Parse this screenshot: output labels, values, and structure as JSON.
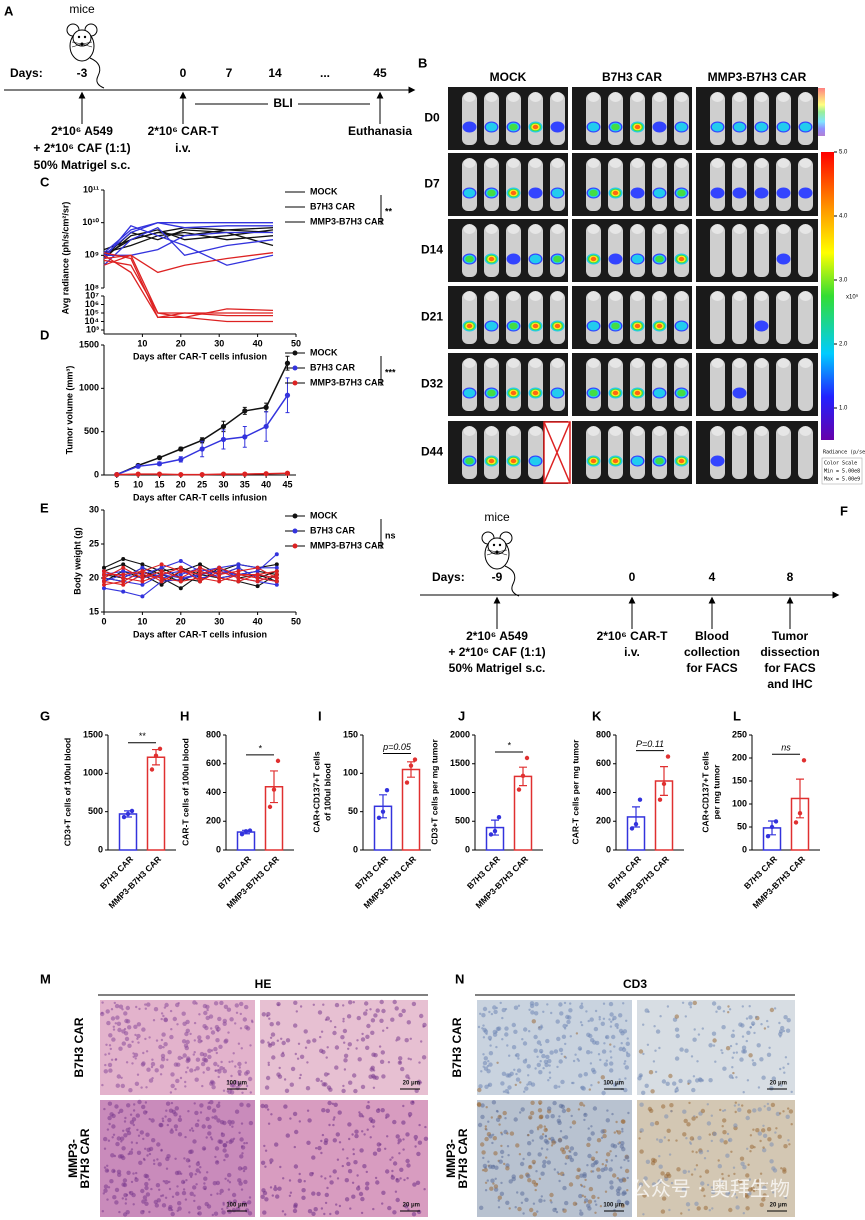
{
  "panel_a": {
    "letter": "A",
    "mice": "mice",
    "days_label": "Days:",
    "ticks": [
      "-3",
      "0",
      "7",
      "14",
      "...",
      "45"
    ],
    "interval": "BLI",
    "events": [
      [
        "2*10⁶ A549",
        "+ 2*10⁶  CAF (1:1)",
        "50% Matrigel s.c."
      ],
      [
        "2*10⁶ CAR-T",
        "i.v."
      ],
      [
        "Euthanasia"
      ]
    ]
  },
  "panel_b": {
    "letter": "B",
    "columns": [
      "MOCK",
      "B7H3 CAR",
      "MMP3-B7H3 CAR"
    ],
    "rows": [
      "D0",
      "D7",
      "D14",
      "D21",
      "D32",
      "D44"
    ],
    "colorbar": {
      "lim": [
        0.5,
        5
      ],
      "ticks": [
        {
          "value": 5,
          "label": "5.0"
        },
        {
          "value": 4,
          "label": "4.0"
        },
        {
          "value": 3,
          "label": "3.0"
        },
        {
          "value": 2,
          "label": "2.0"
        },
        {
          "value": 1,
          "label": "1.0"
        }
      ],
      "unit": "x10⁹",
      "title": "Radiance (p/sec/cm²/sr)",
      "note": [
        "Color Scale",
        "Min = 5.00e8",
        "Max = 5.00e9"
      ]
    }
  },
  "chart_data": [
    {
      "type": "line",
      "letter": "C",
      "xlabel": "Days after CAR-T cells infusion",
      "ylabel": "Avg radiance (ph/s/cm²/sr)",
      "log_scale": true,
      "significance": "**",
      "x": [
        0,
        7,
        14,
        21,
        32,
        44
      ],
      "xlim": [
        0,
        50
      ],
      "xticks": [
        10,
        20,
        30,
        40,
        50
      ],
      "ylim": [
        100000000.0,
        100000000000.0
      ],
      "yticks": [
        {
          "value": 100000000.0,
          "label": "10⁸"
        },
        {
          "value": 1000000000.0,
          "label": "10⁹"
        },
        {
          "value": 10000000000.0,
          "label": "10¹⁰"
        },
        {
          "value": 100000000000.0,
          "label": "10¹¹"
        }
      ],
      "ylim_lower": [
        1000.0,
        10000000.0
      ],
      "yticks_lower": [
        {
          "value": 1000.0,
          "label": "10³"
        },
        {
          "value": 10000.0,
          "label": "10⁴"
        },
        {
          "value": 100000.0,
          "label": "10⁵"
        },
        {
          "value": 1000000.0,
          "label": "10⁶"
        },
        {
          "value": 10000000.0,
          "label": "10⁷"
        }
      ],
      "series": [
        {
          "name": "MOCK",
          "color": "#111111",
          "values": [
            [
              1000000000.0,
              3000000000.0,
              5000000000.0,
              4000000000.0,
              6000000000.0,
              5000000000.0
            ],
            [
              800000000.0,
              4000000000.0,
              6000000000.0,
              3000000000.0,
              4000000000.0,
              6000000000.0
            ],
            [
              1200000000.0,
              2000000000.0,
              4000000000.0,
              5000000000.0,
              3000000000.0,
              4000000000.0
            ],
            [
              900000000.0,
              5000000000.0,
              3000000000.0,
              6000000000.0,
              5000000000.0,
              2000000000.0
            ],
            [
              1500000000.0,
              3000000000.0,
              5000000000.0,
              7000000000.0,
              6000000000.0,
              7000000000.0
            ]
          ]
        },
        {
          "name": "B7H3 CAR",
          "color": "#3333dd",
          "values": [
            [
              1000000000.0,
              5000000000.0,
              10000000000.0,
              10000000000.0,
              10000000000.0,
              10000000000.0
            ],
            [
              800000000.0,
              8000000000.0,
              4000000000.0,
              2000000000.0,
              500000000.0,
              1000000000.0
            ],
            [
              1200000000.0,
              6000000000.0,
              10000000000.0,
              7000000000.0,
              8000000000.0,
              8000000000.0
            ],
            [
              500000000.0,
              3000000000.0,
              7000000000.0,
              1000000000.0,
              2000000000.0,
              3000000000.0
            ],
            [
              1000000000.0,
              1000000000.0,
              1500000000.0,
              4000000000.0,
              5000000000.0,
              5000000000.0
            ]
          ]
        },
        {
          "name": "MMP3-B7H3 CAR",
          "color": "#dd2222",
          "values": [
            [
              500000000.0,
              1000000000.0,
              100000.0,
              100000.0,
              50000.0,
              50000.0
            ],
            [
              1000000000.0,
              300000000.0,
              30000.0,
              30000.0,
              10000.0,
              10000.0
            ],
            [
              700000000.0,
              500000000.0,
              100000.0,
              30000.0,
              300000.0,
              200000.0
            ],
            [
              1200000000.0,
              800000000.0,
              30000.0,
              100000.0,
              100000.0,
              100000.0
            ],
            [
              800000000.0,
              1000000000.0,
              300000000.0,
              500000000.0,
              800000000.0,
              1200000000.0
            ]
          ]
        }
      ]
    },
    {
      "type": "line",
      "letter": "D",
      "xlabel": "Days after CAR-T cells infusion",
      "ylabel": "Tumor volume (mm³)",
      "significance": "***",
      "x": [
        5,
        10,
        15,
        20,
        25,
        30,
        35,
        40,
        45
      ],
      "xlim": [
        2,
        47
      ],
      "xticks": [
        5,
        10,
        15,
        20,
        25,
        30,
        35,
        40,
        45
      ],
      "ylim": [
        0,
        1500
      ],
      "yticks": [
        0,
        500,
        1000,
        1500
      ],
      "series": [
        {
          "name": "MOCK",
          "color": "#111111",
          "values": [
            5,
            110,
            200,
            300,
            400,
            560,
            740,
            780,
            1290
          ],
          "errors": [
            5,
            10,
            15,
            20,
            30,
            60,
            40,
            50,
            80
          ]
        },
        {
          "name": "B7H3 CAR",
          "color": "#3333dd",
          "values": [
            5,
            100,
            130,
            180,
            300,
            410,
            440,
            560,
            920
          ],
          "errors": [
            5,
            15,
            20,
            30,
            90,
            110,
            120,
            170,
            200
          ]
        },
        {
          "name": "MMP3-B7H3 CAR",
          "color": "#dd2222",
          "values": [
            5,
            10,
            10,
            5,
            5,
            10,
            10,
            15,
            20
          ],
          "errors": [
            2,
            5,
            5,
            3,
            3,
            5,
            5,
            8,
            10
          ]
        }
      ]
    },
    {
      "type": "line",
      "letter": "E",
      "xlabel": "Days after CAR-T cells infusion",
      "ylabel": "Body weight (g)",
      "significance": "ns",
      "x": [
        0,
        5,
        10,
        15,
        20,
        25,
        30,
        35,
        40,
        45
      ],
      "xlim": [
        0,
        50
      ],
      "xticks": [
        0,
        10,
        20,
        30,
        40,
        50
      ],
      "ylim": [
        15,
        30
      ],
      "yticks": [
        15,
        20,
        25,
        30
      ],
      "series": [
        {
          "name": "MOCK",
          "color": "#111111",
          "values": [
            [
              21.5,
              22.8,
              22,
              21,
              21.5,
              20.5,
              21,
              22,
              21.5,
              22
            ],
            [
              20.5,
              20,
              21.5,
              20.5,
              19.5,
              21,
              20,
              20.5,
              21,
              20.5
            ],
            [
              19.5,
              21,
              20,
              21.5,
              20,
              19.5,
              21.5,
              20,
              20.5,
              19.5
            ],
            [
              21,
              22,
              20.5,
              19,
              21,
              22,
              20.5,
              21.5,
              20,
              21
            ],
            [
              20,
              19.5,
              21,
              20,
              18.5,
              20.5,
              20,
              19.5,
              18.8,
              20.5
            ]
          ]
        },
        {
          "name": "B7H3 CAR",
          "color": "#3333dd",
          "values": [
            [
              18.5,
              18,
              17.3,
              19.5,
              19.8,
              20.5,
              21,
              20.5,
              21,
              23.5
            ],
            [
              20.5,
              21,
              20.5,
              21.5,
              22.5,
              21,
              21.5,
              22,
              21.5,
              21.5
            ],
            [
              19.5,
              20.5,
              20,
              20.5,
              21,
              20,
              20.5,
              21.5,
              20,
              19.5
            ],
            [
              21,
              20,
              21.5,
              20,
              20.5,
              21.5,
              20,
              20.5,
              20.5,
              20
            ],
            [
              20,
              19.5,
              19,
              20.5,
              20,
              20.5,
              21.5,
              20,
              19.5,
              19
            ]
          ]
        },
        {
          "name": "MMP3-B7H3 CAR",
          "color": "#dd2222",
          "values": [
            [
              19,
              19.5,
              21,
              22,
              21,
              20.5,
              21.5,
              20.5,
              20.5,
              21
            ],
            [
              20,
              21.5,
              20,
              21,
              20,
              21.5,
              20.5,
              21,
              21.5,
              20
            ],
            [
              21,
              20,
              19.5,
              20.5,
              21.5,
              19.5,
              21,
              20,
              19.5,
              20.5
            ],
            [
              20.5,
              20.5,
              21,
              19.5,
              21,
              21,
              20,
              19.5,
              20.5,
              20
            ],
            [
              19.5,
              19,
              20.5,
              20,
              19.5,
              20,
              19.5,
              20.5,
              20,
              19.5
            ]
          ]
        }
      ]
    },
    {
      "type": "bar",
      "letter": "G",
      "ylabel": [
        "CD3+T cells of 100ul blood"
      ],
      "significance": "**",
      "categories": [
        "B7H3 CAR",
        "MMP3-B7H3 CAR"
      ],
      "colors": [
        "#3333dd",
        "#e03030"
      ],
      "values": [
        470,
        1210
      ],
      "errors": [
        40,
        100
      ],
      "points": [
        [
          430,
          470,
          510
        ],
        [
          1050,
          1230,
          1320
        ]
      ],
      "ylim": [
        0,
        1500
      ],
      "yticks": [
        0,
        500,
        1000,
        1500
      ]
    },
    {
      "type": "bar",
      "letter": "H",
      "ylabel": [
        "CAR-T cells of 100ul blood"
      ],
      "significance": "*",
      "categories": [
        "B7H3 CAR",
        "MMP3-B7H3 CAR"
      ],
      "colors": [
        "#3333dd",
        "#e03030"
      ],
      "values": [
        125,
        440
      ],
      "errors": [
        12,
        110
      ],
      "points": [
        [
          110,
          130,
          135
        ],
        [
          300,
          420,
          620
        ]
      ],
      "ylim": [
        0,
        800
      ],
      "yticks": [
        0,
        200,
        400,
        600,
        800
      ]
    },
    {
      "type": "bar",
      "letter": "I",
      "ylabel": [
        "CAR+CD137+T cells",
        "of 100ul blood"
      ],
      "significance": "p=0.05",
      "categories": [
        "B7H3 CAR",
        "MMP3-B7H3 CAR"
      ],
      "colors": [
        "#3333dd",
        "#e03030"
      ],
      "values": [
        57,
        105
      ],
      "errors": [
        15,
        10
      ],
      "points": [
        [
          42,
          50,
          78
        ],
        [
          88,
          110,
          118
        ]
      ],
      "ylim": [
        0,
        150
      ],
      "yticks": [
        0,
        50,
        100,
        150
      ]
    },
    {
      "type": "bar",
      "letter": "J",
      "ylabel": [
        "CD3+T cells per mg tumor"
      ],
      "significance": "*",
      "categories": [
        "B7H3 CAR",
        "MMP3-B7H3 CAR"
      ],
      "colors": [
        "#3333dd",
        "#e03030"
      ],
      "values": [
        390,
        1280
      ],
      "errors": [
        130,
        160
      ],
      "points": [
        [
          270,
          330,
          570
        ],
        [
          1050,
          1290,
          1600
        ]
      ],
      "ylim": [
        0,
        2000
      ],
      "yticks": [
        0,
        500,
        1000,
        1500,
        2000
      ]
    },
    {
      "type": "bar",
      "letter": "K",
      "ylabel": [
        "CAR-T cells per mg tumor"
      ],
      "significance": "P=0.11",
      "categories": [
        "B7H3 CAR",
        "MMP3-B7H3 CAR"
      ],
      "colors": [
        "#3333dd",
        "#e03030"
      ],
      "values": [
        230,
        480
      ],
      "errors": [
        70,
        100
      ],
      "points": [
        [
          150,
          180,
          350
        ],
        [
          350,
          460,
          650
        ]
      ],
      "ylim": [
        0,
        800
      ],
      "yticks": [
        0,
        200,
        400,
        600,
        800
      ]
    },
    {
      "type": "bar",
      "letter": "L",
      "ylabel": [
        "CAR+CD137+T cells",
        "per mg tumor"
      ],
      "significance": "ns",
      "categories": [
        "B7H3 CAR",
        "MMP3-B7H3 CAR"
      ],
      "colors": [
        "#3333dd",
        "#e03030"
      ],
      "values": [
        48,
        112
      ],
      "errors": [
        15,
        42
      ],
      "points": [
        [
          30,
          50,
          62
        ],
        [
          60,
          80,
          195
        ]
      ],
      "ylim": [
        0,
        250
      ],
      "yticks": [
        0,
        50,
        100,
        150,
        200,
        250
      ]
    }
  ],
  "panel_f": {
    "letter": "F",
    "mice": "mice",
    "days_label": "Days:",
    "ticks": [
      "-9",
      "0",
      "4",
      "8"
    ],
    "events": [
      [
        "2*10⁶ A549",
        "+ 2*10⁶  CAF (1:1)",
        "50% Matrigel s.c."
      ],
      [
        "2*10⁶ CAR-T",
        "i.v."
      ],
      [
        "Blood",
        "collection",
        "for FACS"
      ],
      [
        "Tumor",
        "dissection",
        "for FACS",
        "and IHC"
      ]
    ]
  },
  "panel_m": {
    "letter": "M",
    "title": "HE",
    "rows": [
      [
        "B7H3 CAR"
      ],
      [
        "MMP3-",
        "B7H3 CAR"
      ]
    ],
    "scale_bars": [
      "100 μm",
      "20 μm"
    ]
  },
  "panel_n": {
    "letter": "N",
    "title": "CD3",
    "rows": [
      [
        "B7H3 CAR"
      ],
      [
        "MMP3-",
        "B7H3 CAR"
      ]
    ],
    "scale_bars": [
      "100 μm",
      "20 μm"
    ]
  },
  "watermark": "公众号 · 奥拜生物"
}
